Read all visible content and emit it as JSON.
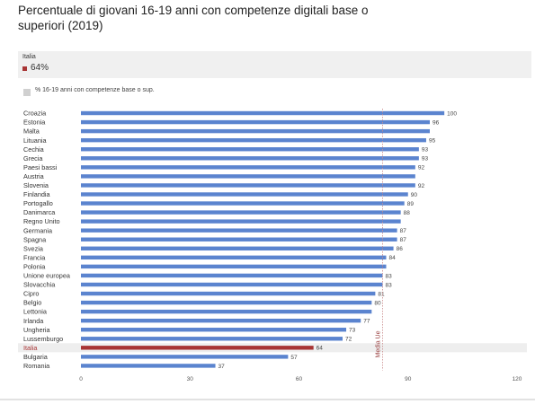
{
  "title": "Percentuale di giovani 16-19 anni con competenze digitali base o superiori (2019)",
  "hover": {
    "country": "Italia",
    "value": "64%"
  },
  "legend_label": "% 16-19 anni con competenze base o sup.",
  "colors": {
    "bar": "#5b84cf",
    "highlight": "#a83434",
    "reference_line": "#c98a8a",
    "highlight_row": "#eeeeee"
  },
  "chart_data": {
    "type": "bar",
    "orientation": "horizontal",
    "categories": [
      "Croazia",
      "Estonia",
      "Malta",
      "Lituania",
      "Cechia",
      "Grecia",
      "Paesi bassi",
      "Austria",
      "Slovenia",
      "Finlandia",
      "Portogallo",
      "Danimarca",
      "Regno Unito",
      "Germania",
      "Spagna",
      "Svezia",
      "Francia",
      "Polonia",
      "Unione europea",
      "Slovacchia",
      "Cipro",
      "Belgio",
      "Lettonia",
      "Irlanda",
      "Ungheria",
      "Lussemburgo",
      "Italia",
      "Bulgaria",
      "Romania"
    ],
    "series": [
      {
        "values": [
          100,
          96,
          96,
          95,
          93,
          93,
          92,
          92,
          92,
          90,
          89,
          88,
          88,
          87,
          87,
          86,
          84,
          84,
          83,
          83,
          81,
          80,
          80,
          77,
          73,
          72,
          64,
          57,
          37
        ],
        "labels": [
          "100",
          "96",
          "",
          "95",
          "93",
          "93",
          "92",
          "",
          "92",
          "90",
          "89",
          "88",
          "",
          "87",
          "87",
          "86",
          "84",
          "",
          "83",
          "83",
          "81",
          "80",
          "",
          "77",
          "73",
          "72",
          "64",
          "57",
          "37"
        ]
      }
    ],
    "highlight": "Italia",
    "reference_line": {
      "label": "Media Ue",
      "value": 83
    },
    "xlim": [
      0,
      120
    ],
    "xticks": [
      "0",
      "30",
      "60",
      "90",
      "120"
    ],
    "xlabel": "",
    "ylabel": "",
    "grid": false,
    "legend": "top-left"
  }
}
